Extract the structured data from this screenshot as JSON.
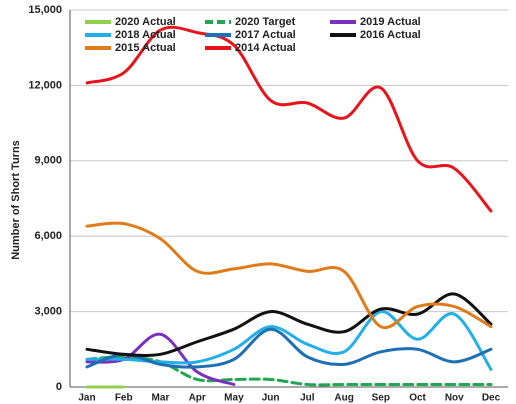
{
  "chart_data": {
    "type": "line",
    "ylabel": "Number of Short Turns",
    "categories": [
      "Jan",
      "Feb",
      "Mar",
      "Apr",
      "May",
      "Jun",
      "Jul",
      "Aug",
      "Sep",
      "Oct",
      "Nov",
      "Dec"
    ],
    "ylim": [
      0,
      15000
    ],
    "yticks": [
      0,
      {
        "value": 3000,
        "label": "3,000"
      },
      {
        "value": 6000,
        "label": "6,000"
      },
      {
        "value": 9000,
        "label": "9,000"
      },
      {
        "value": 12000,
        "label": "12,000"
      },
      {
        "value": 15000,
        "label": "15,000"
      }
    ],
    "grid": true,
    "series": [
      {
        "name": "2020 Actual",
        "color": "#8fd14f",
        "values": [
          0,
          0,
          null,
          null,
          null,
          null,
          null,
          null,
          null,
          null,
          null,
          null
        ]
      },
      {
        "name": "2020 Target",
        "color": "#1fa84f",
        "dash": true,
        "values": [
          1100,
          1200,
          1000,
          300,
          300,
          300,
          100,
          100,
          100,
          100,
          100,
          100
        ]
      },
      {
        "name": "2019 Actual",
        "color": "#7b2fbe",
        "values": [
          1000,
          1100,
          2100,
          600,
          100,
          null,
          null,
          null,
          null,
          null,
          null,
          null
        ]
      },
      {
        "name": "2018 Actual",
        "color": "#22aee8",
        "values": [
          1100,
          1100,
          1000,
          1000,
          1500,
          2400,
          1700,
          1400,
          3000,
          1900,
          2900,
          700
        ]
      },
      {
        "name": "2017 Actual",
        "color": "#1f6fb5",
        "values": [
          800,
          1300,
          900,
          800,
          1100,
          2300,
          1200,
          900,
          1400,
          1500,
          1000,
          1500
        ]
      },
      {
        "name": "2016 Actual",
        "color": "#111111",
        "values": [
          1500,
          1300,
          1300,
          1800,
          2300,
          3000,
          2500,
          2200,
          3100,
          2900,
          3700,
          2500
        ]
      },
      {
        "name": "2015 Actual",
        "color": "#e07b1a",
        "values": [
          6400,
          6500,
          5900,
          4600,
          4700,
          4900,
          4600,
          4600,
          2400,
          3200,
          3200,
          2400
        ]
      },
      {
        "name": "2014 Actual",
        "color": "#e8141b",
        "values": [
          12100,
          12500,
          14200,
          14100,
          13600,
          11400,
          11300,
          10700,
          11900,
          9000,
          8700,
          7000
        ]
      }
    ]
  }
}
